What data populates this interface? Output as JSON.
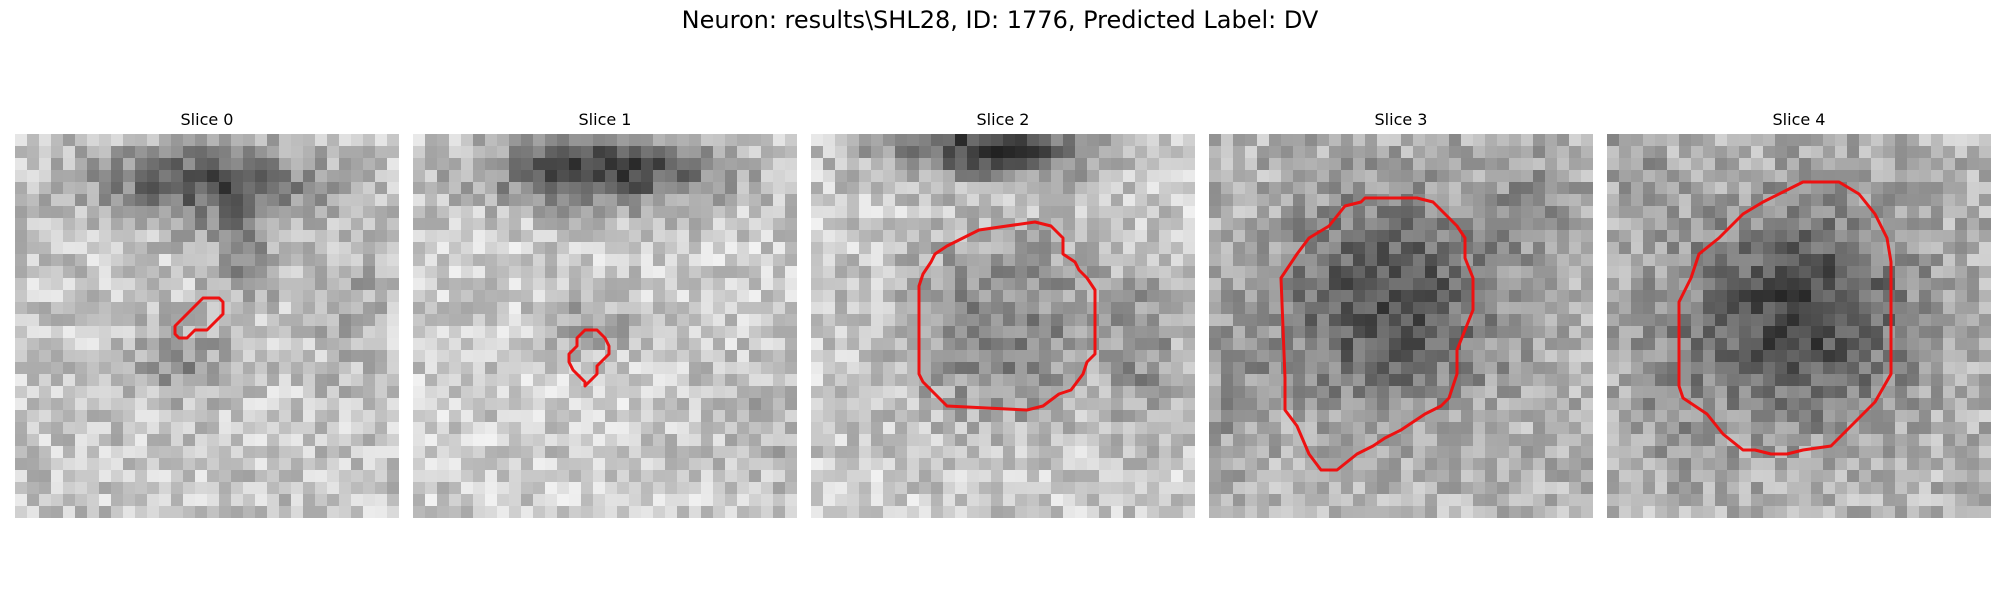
{
  "title": "Neuron: results\\SHL28, ID: 1776, Predicted Label: DV",
  "contour_color": "#ee1111",
  "panels": [
    {
      "label": "Slice 0"
    },
    {
      "label": "Slice 1"
    },
    {
      "label": "Slice 2"
    },
    {
      "label": "Slice 3"
    },
    {
      "label": "Slice 4"
    }
  ]
}
